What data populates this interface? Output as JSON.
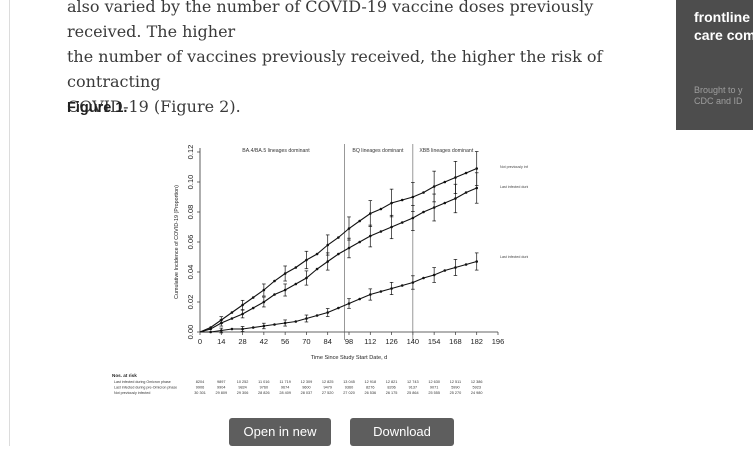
{
  "article": {
    "lines": [
      "also varied by the number of COVID-19 vaccine doses previously received. The higher",
      "the number of vaccines previously received, the higher the risk of contracting",
      "COVID-19 (Figure 2)."
    ]
  },
  "figure": {
    "heading": "Figure 1.",
    "open_button_label": "Open in new tab",
    "download_button_label": "Download slide"
  },
  "chart_data": {
    "type": "line",
    "xlabel": "Time Since Study Start Date, d",
    "ylabel": "Cumulative Incidence of COVID-19 (Proportion)",
    "xlim": [
      0,
      196
    ],
    "ylim": [
      0,
      0.12
    ],
    "xticks": [
      0,
      14,
      28,
      42,
      56,
      70,
      84,
      98,
      112,
      126,
      140,
      154,
      168,
      182,
      196
    ],
    "yticks": [
      "0.00",
      "0.02",
      "0.04",
      "0.06",
      "0.08",
      "0.10",
      "0.12"
    ],
    "phase_lines": [
      95,
      140
    ],
    "phases": [
      {
        "label": "BA.4/BA.5 lineages dominant",
        "x": 50
      },
      {
        "label": "BQ lineages dominant",
        "x": 117
      },
      {
        "label": "XBB lineages dominant",
        "x": 162
      }
    ],
    "series": [
      {
        "name": "Not previously infected",
        "x": [
          0,
          7,
          14,
          21,
          28,
          35,
          42,
          49,
          56,
          63,
          70,
          77,
          84,
          91,
          98,
          105,
          112,
          119,
          126,
          133,
          140,
          147,
          154,
          161,
          168,
          175,
          182
        ],
        "y": [
          0.0,
          0.003,
          0.008,
          0.013,
          0.018,
          0.023,
          0.028,
          0.034,
          0.039,
          0.043,
          0.048,
          0.052,
          0.058,
          0.063,
          0.069,
          0.074,
          0.079,
          0.082,
          0.086,
          0.088,
          0.09,
          0.093,
          0.097,
          0.1,
          0.103,
          0.106,
          0.109
        ]
      },
      {
        "name": "Last infected during pre-Omicron phase",
        "x": [
          0,
          7,
          14,
          21,
          28,
          35,
          42,
          49,
          56,
          63,
          70,
          77,
          84,
          91,
          98,
          105,
          112,
          119,
          126,
          133,
          140,
          147,
          154,
          161,
          168,
          175,
          182
        ],
        "y": [
          0.0,
          0.002,
          0.006,
          0.009,
          0.012,
          0.016,
          0.02,
          0.025,
          0.028,
          0.032,
          0.036,
          0.042,
          0.047,
          0.052,
          0.056,
          0.06,
          0.064,
          0.067,
          0.07,
          0.073,
          0.076,
          0.08,
          0.083,
          0.086,
          0.089,
          0.093,
          0.096
        ]
      },
      {
        "name": "Last infected during Omicron phase",
        "x": [
          0,
          7,
          14,
          21,
          28,
          35,
          42,
          49,
          56,
          63,
          70,
          77,
          84,
          91,
          98,
          105,
          112,
          119,
          126,
          133,
          140,
          147,
          154,
          161,
          168,
          175,
          182
        ],
        "y": [
          0.0,
          0.0,
          0.001,
          0.002,
          0.002,
          0.003,
          0.004,
          0.005,
          0.006,
          0.007,
          0.009,
          0.011,
          0.013,
          0.016,
          0.019,
          0.022,
          0.025,
          0.027,
          0.029,
          0.031,
          0.033,
          0.036,
          0.038,
          0.041,
          0.043,
          0.045,
          0.047
        ]
      }
    ],
    "series_labels": [
      "Not previously infected",
      "Last infected during pre-Omicron phase",
      "Last infected during Omicron phase"
    ],
    "at_risk": {
      "title": "Nos. at risk",
      "rows": [
        {
          "label": "Last infected during Omicron phase",
          "values": [
            "8204",
            "9897",
            "10 252",
            "11 016",
            "11 719",
            "12 309",
            "12 825",
            "13 045",
            "12 918",
            "12 821",
            "12 743",
            "12 630",
            "12 511",
            "12 386"
          ]
        },
        {
          "label": "Last infected during pre-Omicron phase",
          "values": [
            "9906",
            "9904",
            "9824",
            "9760",
            "9674",
            "9600",
            "9479",
            "9360",
            "8276",
            "8206",
            "9137",
            "9071",
            "5990",
            "5923"
          ]
        },
        {
          "label": "Not previously infected",
          "values": [
            "30 301",
            "29 809",
            "29 306",
            "28 826",
            "28 409",
            "28 037",
            "27 520",
            "27 020",
            "26 536",
            "26 175",
            "25 864",
            "25 555",
            "25 270",
            "24 980"
          ]
        }
      ]
    }
  },
  "ad": {
    "headline": "frontline\ncare com",
    "subtext": "Brought to y\nCDC and ID"
  }
}
